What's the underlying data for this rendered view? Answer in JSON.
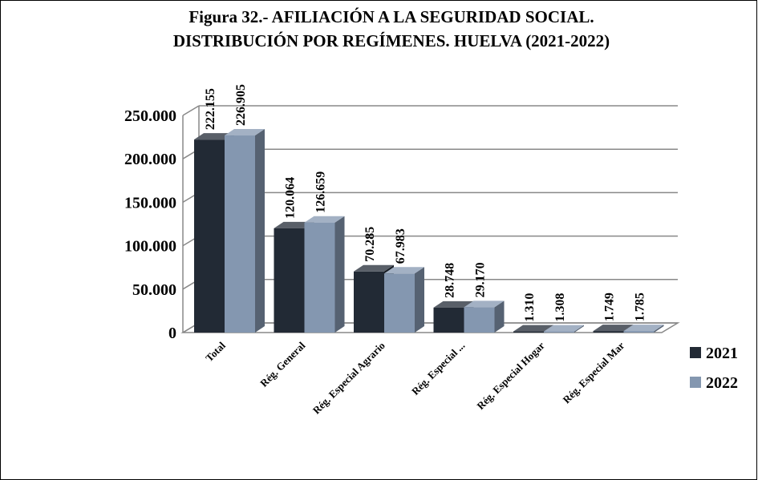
{
  "chart_data": {
    "type": "bar3d",
    "title": [
      "Figura 32.- AFILIACIÓN A LA SEGURIDAD SOCIAL.",
      "DISTRIBUCIÓN POR REGÍMENES. HUELVA (2021-2022)"
    ],
    "categories": [
      "Total",
      "Rég. General",
      "Rég. Especial Agrario",
      "Rég. Especial ...",
      "Rég. Especial Hogar",
      "Rég. Especial Mar"
    ],
    "series": [
      {
        "name": "2021",
        "color": "#222a35",
        "values": [
          222155,
          120064,
          70285,
          28748,
          1310,
          1749
        ],
        "value_labels": [
          "222.155",
          "120.064",
          "70.285",
          "28.748",
          "1.310",
          "1.749"
        ]
      },
      {
        "name": "2022",
        "color": "#8497b0",
        "values": [
          226905,
          126659,
          67983,
          29170,
          1308,
          1785
        ],
        "value_labels": [
          "226.905",
          "126.659",
          "67.983",
          "29.170",
          "1.308",
          "1.785"
        ]
      }
    ],
    "ylim": [
      0,
      250000
    ],
    "yticks": [
      0,
      {
        "value": 50000,
        "label": "50.000"
      },
      {
        "value": 100000,
        "label": "100.000"
      },
      {
        "value": 150000,
        "label": "150.000"
      },
      {
        "value": 200000,
        "label": "200.000"
      },
      {
        "value": 250000,
        "label": "250.000"
      }
    ],
    "grid": true,
    "legend": "right"
  }
}
